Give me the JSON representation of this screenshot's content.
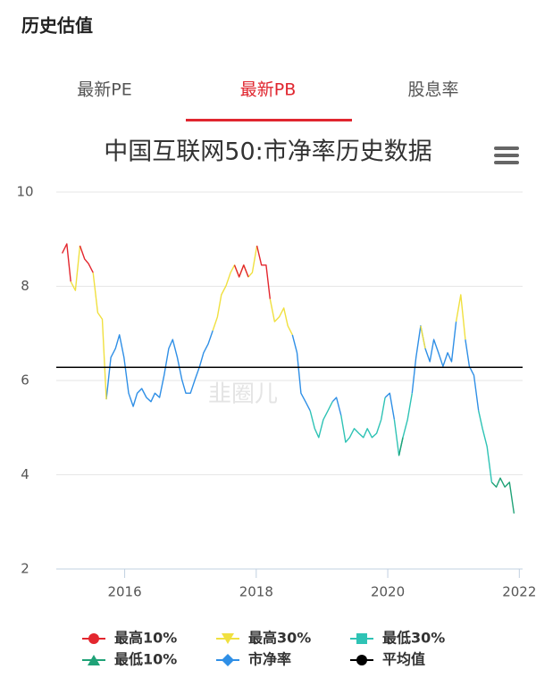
{
  "header": {
    "title": "历史估值"
  },
  "tabs": [
    {
      "label": "最新PE"
    },
    {
      "label": "最新PB",
      "active": true
    },
    {
      "label": "股息率"
    }
  ],
  "watermark": "韭圈儿",
  "chart_data": {
    "type": "line",
    "title": "中国互联网50:市净率历史数据",
    "xlim": [
      2014.96,
      2022.05
    ],
    "xticks": [
      2016,
      2018,
      2020,
      2022
    ],
    "ylim": [
      2,
      10
    ],
    "yticks": [
      2,
      4,
      6,
      8,
      10
    ],
    "grid": true,
    "x": [
      2015.05,
      2015.12,
      2015.18,
      2015.25,
      2015.32,
      2015.39,
      2015.45,
      2015.52,
      2015.59,
      2015.66,
      2015.72,
      2015.79,
      2015.86,
      2015.92,
      2015.99,
      2016.06,
      2016.13,
      2016.19,
      2016.26,
      2016.33,
      2016.4,
      2016.46,
      2016.53,
      2016.6,
      2016.67,
      2016.73,
      2016.8,
      2016.87,
      2016.93,
      2017.0,
      2017.07,
      2017.14,
      2017.2,
      2017.27,
      2017.34,
      2017.41,
      2017.47,
      2017.54,
      2017.61,
      2017.67,
      2017.74,
      2017.81,
      2017.88,
      2017.94,
      2018.01,
      2018.08,
      2018.15,
      2018.21,
      2018.28,
      2018.35,
      2018.42,
      2018.48,
      2018.55,
      2018.62,
      2018.68,
      2018.75,
      2018.82,
      2018.89,
      2018.95,
      2019.02,
      2019.09,
      2019.16,
      2019.22,
      2019.29,
      2019.36,
      2019.42,
      2019.49,
      2019.56,
      2019.63,
      2019.69,
      2019.76,
      2019.83,
      2019.9,
      2019.96,
      2020.03,
      2020.1,
      2020.17,
      2020.23,
      2020.3,
      2020.37,
      2020.43,
      2020.5,
      2020.57,
      2020.64,
      2020.7,
      2020.77,
      2020.84,
      2020.91,
      2020.97,
      2021.04,
      2021.11,
      2021.18,
      2021.24,
      2021.31,
      2021.38,
      2021.44,
      2021.51,
      2021.58,
      2021.65,
      2021.71,
      2021.78,
      2021.85,
      2021.92
    ],
    "series": [
      {
        "name": "最高10%",
        "color": "#e3262e",
        "marker": "circle",
        "values": [
          8.7,
          8.9,
          8.1,
          null,
          8.86,
          8.58,
          8.48,
          8.29,
          null,
          null,
          null,
          null,
          null,
          null,
          null,
          null,
          null,
          null,
          null,
          null,
          null,
          null,
          null,
          null,
          null,
          null,
          null,
          null,
          null,
          null,
          null,
          null,
          null,
          null,
          null,
          null,
          null,
          null,
          null,
          8.45,
          8.2,
          8.45,
          8.2,
          null,
          8.86,
          8.45,
          8.45,
          7.73,
          null,
          null,
          null,
          null,
          null,
          null,
          null,
          null,
          null,
          null,
          null,
          null,
          null,
          null,
          null,
          null,
          null,
          null,
          null,
          null,
          null,
          null,
          null,
          null,
          null,
          null,
          null,
          null,
          null,
          null,
          null,
          null,
          null,
          null,
          null,
          null,
          null,
          null,
          null,
          null,
          null,
          null,
          null,
          null,
          null,
          null,
          null,
          null,
          null,
          null,
          null,
          null,
          null,
          null,
          null
        ]
      },
      {
        "name": "最高30%",
        "color": "#f0e040",
        "marker": "triangle-down",
        "values": [
          null,
          null,
          8.1,
          7.91,
          8.86,
          null,
          null,
          8.29,
          7.44,
          7.3,
          5.6,
          null,
          null,
          null,
          null,
          null,
          null,
          null,
          null,
          null,
          null,
          null,
          null,
          null,
          null,
          null,
          null,
          null,
          null,
          null,
          null,
          null,
          null,
          null,
          7.06,
          7.35,
          7.82,
          8.01,
          8.29,
          8.45,
          8.2,
          8.45,
          8.2,
          8.29,
          8.86,
          null,
          null,
          7.73,
          7.25,
          7.35,
          7.54,
          7.16,
          6.97,
          null,
          null,
          null,
          null,
          null,
          null,
          null,
          null,
          null,
          null,
          null,
          null,
          null,
          null,
          null,
          null,
          null,
          null,
          null,
          null,
          null,
          null,
          null,
          null,
          null,
          null,
          null,
          null,
          7.16,
          6.68,
          null,
          null,
          null,
          null,
          null,
          null,
          7.25,
          7.82,
          6.87,
          null,
          null,
          null,
          null,
          null,
          null,
          null,
          null,
          null,
          null,
          null
        ]
      },
      {
        "name": "最低30%",
        "color": "#2fc3b5",
        "marker": "square",
        "values": [
          null,
          null,
          null,
          null,
          null,
          null,
          null,
          null,
          null,
          null,
          null,
          null,
          null,
          null,
          null,
          null,
          null,
          null,
          null,
          null,
          null,
          null,
          null,
          null,
          null,
          null,
          null,
          null,
          null,
          null,
          null,
          null,
          null,
          null,
          null,
          null,
          null,
          null,
          null,
          null,
          null,
          null,
          null,
          null,
          null,
          null,
          null,
          null,
          null,
          null,
          null,
          null,
          null,
          null,
          null,
          null,
          5.36,
          4.98,
          4.79,
          5.17,
          5.36,
          5.55,
          null,
          5.26,
          4.69,
          4.79,
          4.98,
          4.88,
          4.79,
          4.98,
          4.79,
          4.88,
          5.17,
          5.64,
          null,
          5.17,
          4.41,
          4.79,
          5.17,
          5.73,
          null,
          null,
          null,
          null,
          null,
          null,
          null,
          null,
          null,
          null,
          null,
          null,
          null,
          null,
          5.36,
          4.98,
          4.6,
          3.84,
          null,
          null,
          null,
          null,
          null
        ]
      },
      {
        "name": "最低10%",
        "color": "#1fa277",
        "marker": "triangle-up",
        "values": [
          null,
          null,
          null,
          null,
          null,
          null,
          null,
          null,
          null,
          null,
          null,
          null,
          null,
          null,
          null,
          null,
          null,
          null,
          null,
          null,
          null,
          null,
          null,
          null,
          null,
          null,
          null,
          null,
          null,
          null,
          null,
          null,
          null,
          null,
          null,
          null,
          null,
          null,
          null,
          null,
          null,
          null,
          null,
          null,
          null,
          null,
          null,
          null,
          null,
          null,
          null,
          null,
          null,
          null,
          null,
          null,
          null,
          null,
          null,
          null,
          null,
          null,
          null,
          null,
          null,
          null,
          null,
          null,
          null,
          null,
          null,
          null,
          null,
          null,
          null,
          null,
          4.41,
          4.79,
          null,
          null,
          null,
          null,
          null,
          null,
          null,
          null,
          null,
          null,
          null,
          null,
          null,
          null,
          null,
          null,
          null,
          null,
          null,
          3.84,
          3.74,
          3.93,
          3.74,
          3.84,
          3.18
        ]
      },
      {
        "name": "市净率",
        "color": "#2f8fe6",
        "marker": "diamond",
        "values": [
          null,
          null,
          null,
          null,
          null,
          null,
          null,
          null,
          null,
          null,
          5.6,
          6.49,
          6.68,
          6.97,
          6.49,
          5.73,
          5.45,
          5.73,
          5.83,
          5.64,
          5.55,
          5.73,
          5.64,
          6.11,
          6.68,
          6.87,
          6.49,
          6.02,
          5.73,
          5.73,
          6.02,
          6.3,
          6.59,
          6.78,
          7.06,
          null,
          null,
          null,
          null,
          null,
          null,
          null,
          null,
          null,
          null,
          null,
          null,
          null,
          null,
          null,
          null,
          null,
          6.97,
          6.59,
          5.73,
          5.55,
          5.36,
          null,
          null,
          null,
          null,
          5.55,
          5.64,
          5.26,
          null,
          null,
          null,
          null,
          null,
          null,
          null,
          null,
          null,
          5.64,
          5.73,
          5.17,
          null,
          null,
          null,
          5.73,
          6.49,
          7.16,
          6.68,
          6.4,
          6.87,
          6.59,
          6.3,
          6.59,
          6.4,
          7.25,
          null,
          6.87,
          6.3,
          6.11,
          5.36,
          null,
          null,
          null,
          null,
          null,
          null,
          null,
          null
        ]
      }
    ],
    "average": {
      "name": "平均值",
      "color": "#000000",
      "marker": "circle",
      "value": 6.28
    }
  }
}
